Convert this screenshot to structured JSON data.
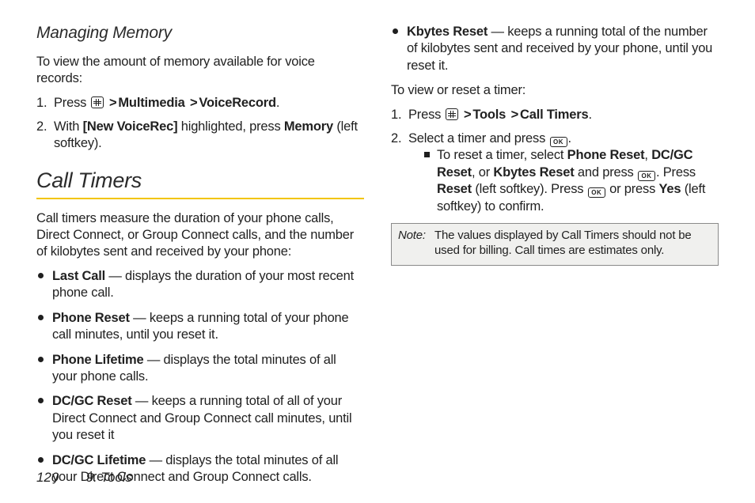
{
  "col1": {
    "h2": "Managing Memory",
    "intro": "To view the amount of memory available for voice records:",
    "step1_pre": "Press ",
    "step1_b1": "Multimedia",
    "step1_b2": "VoiceRecord",
    "step2_a": "With ",
    "step2_b1": "[New VoiceRec]",
    "step2_b": " highlighted, press ",
    "step2_b2": "Memory",
    "step2_c": " (left softkey).",
    "h1": "Call Timers",
    "p1": "Call timers measure the duration of your phone calls, Direct Connect, or Group Connect calls, and the number of kilobytes sent and received by your phone:",
    "li": [
      {
        "b": "Last Call",
        "t": " — displays the duration of your most recent phone call."
      },
      {
        "b": "Phone Reset",
        "t": " — keeps a running total of your phone call minutes, until you reset it."
      },
      {
        "b": "Phone Lifetime",
        "t": " — displays the total minutes of all your phone calls."
      },
      {
        "b": "DC/GC Reset",
        "t": " — keeps a running total of all of your Direct Connect and Group Connect call minutes, until you reset it"
      },
      {
        "b": "DC/GC Lifetime",
        "t": " — displays the total minutes of all your Direct Connect and Group Connect calls."
      }
    ]
  },
  "col2": {
    "li0": {
      "b": "Kbytes Reset",
      "t": " — keeps a running total of the number of kilobytes sent and received by your phone, until you reset it."
    },
    "p1": "To view or reset a timer:",
    "step1_pre": "Press ",
    "step1_b1": "Tools",
    "step1_b2": "Call Timers",
    "step2_a": "Select a timer and press ",
    "sub_a": "To reset a timer, select ",
    "sub_b1": "Phone Reset",
    "sub_b2": "DC/GC Reset",
    "sub_b3": "Kbytes Reset",
    "sub_c": " and press ",
    "sub_d": ". Press ",
    "sub_b4": "Reset",
    "sub_e": " (left softkey). Press ",
    "sub_f": " or press ",
    "sub_b5": "Yes",
    "sub_g": " (left softkey) to confirm.",
    "note_label": "Note:",
    "note_text": "The values displayed by Call Timers should not be used for billing. Call times are estimates only."
  },
  "footer": {
    "page": "120",
    "section": "9. Tools"
  },
  "glyphs": {
    "gt": ">",
    "comma_sp": ", ",
    "or_sp": ", or ",
    "period": "."
  }
}
